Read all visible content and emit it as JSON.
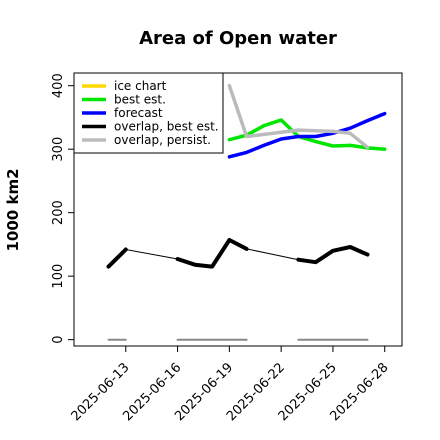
{
  "chart_data": {
    "type": "line",
    "title": "Area of Open water",
    "ylabel": "1000 km2",
    "xlabel": "",
    "ylim": [
      -10,
      420
    ],
    "xlim": [
      "2025-06-10",
      "2025-06-29"
    ],
    "yticks": [
      0,
      100,
      200,
      300,
      400
    ],
    "xticks": [
      "2025-06-13",
      "2025-06-16",
      "2025-06-19",
      "2025-06-22",
      "2025-06-25",
      "2025-06-28"
    ],
    "xtick_colors": [
      "#000000",
      "#000000",
      "#228B22",
      "#000000",
      "#000000",
      "#000000"
    ],
    "grid": false,
    "legend_position": "top-left",
    "legend": [
      {
        "name": "ice chart",
        "color": "#FFD700"
      },
      {
        "name": "best est.",
        "color": "#00E600"
      },
      {
        "name": "forecast",
        "color": "#0000FF"
      },
      {
        "name": "overlap, best est.",
        "color": "#000000"
      },
      {
        "name": "overlap, persist.",
        "color": "#BBBBBB"
      }
    ],
    "series": [
      {
        "name": "best est.",
        "color": "#00E600",
        "points": [
          [
            "2025-06-19",
            315
          ],
          [
            "2025-06-20",
            322
          ],
          [
            "2025-06-21",
            337
          ],
          [
            "2025-06-22",
            346
          ],
          [
            "2025-06-23",
            320
          ],
          [
            "2025-06-24",
            312
          ],
          [
            "2025-06-25",
            305
          ],
          [
            "2025-06-26",
            306
          ],
          [
            "2025-06-27",
            302
          ],
          [
            "2025-06-28",
            300
          ]
        ]
      },
      {
        "name": "forecast",
        "color": "#0000FF",
        "points": [
          [
            "2025-06-19",
            288
          ],
          [
            "2025-06-20",
            295
          ],
          [
            "2025-06-21",
            306
          ],
          [
            "2025-06-22",
            316
          ],
          [
            "2025-06-23",
            320
          ],
          [
            "2025-06-24",
            320
          ],
          [
            "2025-06-25",
            325
          ],
          [
            "2025-06-26",
            333
          ],
          [
            "2025-06-27",
            345
          ],
          [
            "2025-06-28",
            356
          ]
        ]
      },
      {
        "name": "overlap, persist.",
        "color": "#BBBBBB",
        "points": [
          [
            "2025-06-19",
            400
          ],
          [
            "2025-06-20",
            320
          ],
          [
            "2025-06-23",
            330
          ],
          [
            "2025-06-25",
            328
          ],
          [
            "2025-06-26",
            325
          ],
          [
            "2025-06-27",
            303
          ]
        ]
      },
      {
        "name": "overlap, best est.",
        "color": "#000000",
        "segments": [
          [
            [
              "2025-06-12",
              115
            ],
            [
              "2025-06-13",
              142
            ]
          ],
          [
            [
              "2025-06-16",
              127
            ],
            [
              "2025-06-17",
              118
            ],
            [
              "2025-06-18",
              115
            ],
            [
              "2025-06-19",
              157
            ],
            [
              "2025-06-20",
              143
            ]
          ],
          [
            [
              "2025-06-23",
              126
            ],
            [
              "2025-06-24",
              122
            ],
            [
              "2025-06-25",
              140
            ],
            [
              "2025-06-26",
              146
            ],
            [
              "2025-06-27",
              134
            ]
          ]
        ],
        "connectors": [
          [
            [
              "2025-06-13",
              142
            ],
            [
              "2025-06-16",
              127
            ]
          ],
          [
            [
              "2025-06-20",
              143
            ],
            [
              "2025-06-23",
              126
            ]
          ]
        ]
      },
      {
        "name": "zero baseline",
        "color": "#888888",
        "segments": [
          [
            [
              "2025-06-12",
              0
            ],
            [
              "2025-06-13",
              0
            ]
          ],
          [
            [
              "2025-06-16",
              0
            ],
            [
              "2025-06-20",
              0
            ]
          ],
          [
            [
              "2025-06-23",
              0
            ],
            [
              "2025-06-27",
              0
            ]
          ]
        ]
      }
    ]
  }
}
